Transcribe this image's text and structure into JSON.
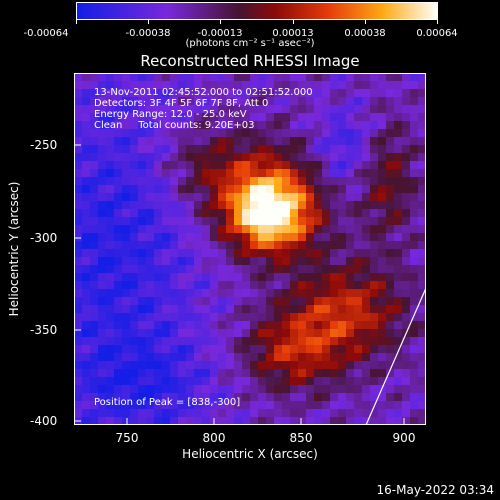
{
  "colorbar": {
    "ticks": [
      "-0.00064",
      "-0.00038",
      "-0.00013",
      "0.00013",
      "0.00038",
      "0.00064"
    ],
    "units": "(photons cm⁻² s⁻¹ asec⁻²)"
  },
  "title": "Reconstructed RHESSI Image",
  "info": {
    "line1": "13-Nov-2011 02:45:52.000 to 02:51:52.000",
    "line2": "Detectors: 3F 4F 5F 6F 7F 8F, Att 0",
    "line3": "Energy Range: 12.0 - 25.0 keV",
    "line4": "Clean     Total counts: 9.20E+03"
  },
  "peak": "Position of Peak = [838,-300]",
  "axes": {
    "xlabel": "Heliocentric X (arcsec)",
    "ylabel": "Heliocentric Y (arcsec)",
    "xticks": [
      "750",
      "800",
      "850",
      "900"
    ],
    "yticks": [
      "-250",
      "-300",
      "-350",
      "-400"
    ],
    "xlim": [
      720,
      910
    ],
    "ylim": [
      -402,
      -212
    ]
  },
  "timestamp": "16-May-2022 03:34"
}
